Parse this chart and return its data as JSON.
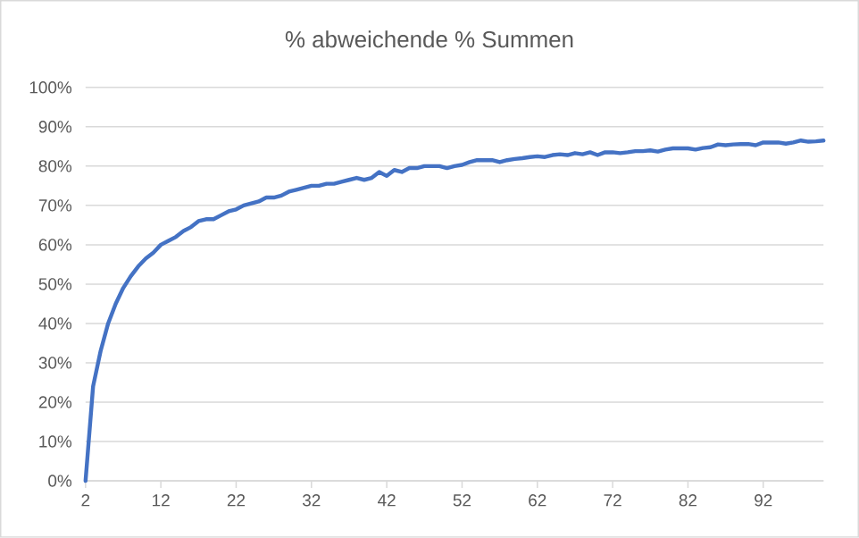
{
  "chart_data": {
    "type": "line",
    "title": "% abweichende % Summen",
    "categories": [
      "2",
      null,
      null,
      null,
      null,
      null,
      null,
      null,
      null,
      null,
      "12",
      null,
      null,
      null,
      null,
      null,
      null,
      null,
      null,
      null,
      "22",
      null,
      null,
      null,
      null,
      null,
      null,
      null,
      null,
      null,
      "32",
      null,
      null,
      null,
      null,
      null,
      null,
      null,
      null,
      null,
      "42",
      null,
      null,
      null,
      null,
      null,
      null,
      null,
      null,
      null,
      "52",
      null,
      null,
      null,
      null,
      null,
      null,
      null,
      null,
      null,
      "62",
      null,
      null,
      null,
      null,
      null,
      null,
      null,
      null,
      null,
      "72",
      null,
      null,
      null,
      null,
      null,
      null,
      null,
      null,
      null,
      "82",
      null,
      null,
      null,
      null,
      null,
      null,
      null,
      null,
      null,
      "92",
      null,
      null,
      null,
      null,
      null,
      null,
      null,
      null
    ],
    "values": [
      0,
      24,
      33,
      40,
      45,
      49,
      52,
      54.5,
      56.5,
      58,
      60,
      61,
      62,
      63.5,
      64.5,
      66,
      66.5,
      66.5,
      67.5,
      68.5,
      69,
      70,
      70.5,
      71,
      72,
      72,
      72.5,
      73.5,
      74,
      74.5,
      75,
      75,
      75.5,
      75.5,
      76,
      76.5,
      77,
      76.5,
      77,
      78.5,
      77.5,
      79,
      78.5,
      79.5,
      79.5,
      80,
      80,
      80,
      79.5,
      80,
      80.3,
      81,
      81.5,
      81.5,
      81.5,
      81,
      81.5,
      81.8,
      82,
      82.3,
      82.5,
      82.3,
      82.8,
      83,
      82.8,
      83.3,
      83,
      83.5,
      82.8,
      83.5,
      83.5,
      83.3,
      83.5,
      83.8,
      83.8,
      84,
      83.7,
      84.2,
      84.5,
      84.5,
      84.5,
      84.2,
      84.6,
      84.8,
      85.5,
      85.3,
      85.5,
      85.6,
      85.6,
      85.3,
      86,
      86,
      86,
      85.7,
      86,
      86.5,
      86.2,
      86.3,
      86.5
    ],
    "color": "#4472c4",
    "ylim": [
      0,
      100
    ],
    "yticks": [
      {
        "value": 0,
        "label": "0%"
      },
      {
        "value": 10,
        "label": "10%"
      },
      {
        "value": 20,
        "label": "20%"
      },
      {
        "value": 30,
        "label": "30%"
      },
      {
        "value": 40,
        "label": "40%"
      },
      {
        "value": 50,
        "label": "50%"
      },
      {
        "value": 60,
        "label": "60%"
      },
      {
        "value": 70,
        "label": "70%"
      },
      {
        "value": 80,
        "label": "80%"
      },
      {
        "value": 90,
        "label": "90%"
      },
      {
        "value": 100,
        "label": "100%"
      }
    ],
    "grid": "y"
  }
}
